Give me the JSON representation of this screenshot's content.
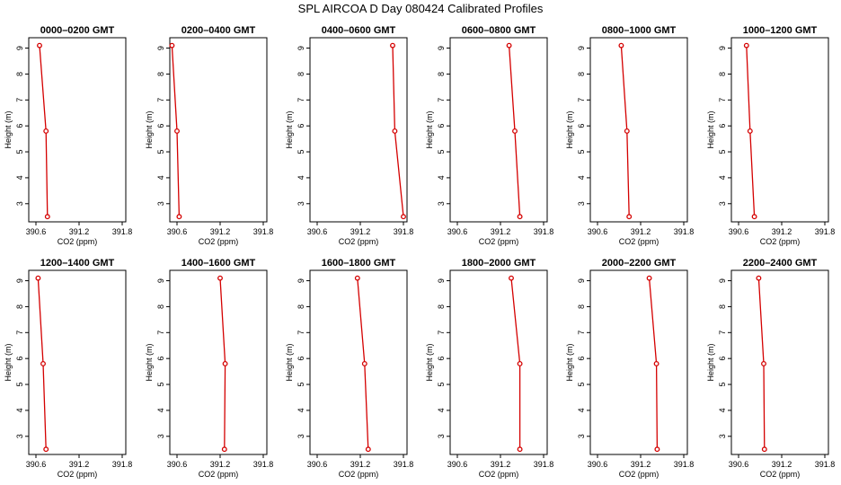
{
  "figure": {
    "title": "SPL AIRCOA D  Day 080424  Calibrated Profiles",
    "line_color": "#d40000",
    "marker_color": "#d40000"
  },
  "chart_data": [
    {
      "type": "line",
      "title": "0000–0200 GMT",
      "xlabel": "CO2 (ppm)",
      "ylabel": "Height (m)",
      "xlim": [
        390.5,
        391.85
      ],
      "ylim": [
        2.3,
        9.4
      ],
      "xticks": [
        "390.6",
        "391.2",
        "391.8"
      ],
      "yticks": [
        "3",
        "4",
        "5",
        "6",
        "7",
        "8",
        "9"
      ],
      "series": [
        {
          "x": [
            390.65,
            390.74,
            390.76
          ],
          "y": [
            9.1,
            5.8,
            2.5
          ]
        }
      ]
    },
    {
      "type": "line",
      "title": "0200–0400 GMT",
      "xlabel": "CO2 (ppm)",
      "ylabel": "Height (m)",
      "xlim": [
        390.5,
        391.85
      ],
      "ylim": [
        2.3,
        9.4
      ],
      "xticks": [
        "390.6",
        "391.2",
        "391.8"
      ],
      "yticks": [
        "3",
        "4",
        "5",
        "6",
        "7",
        "8",
        "9"
      ],
      "series": [
        {
          "x": [
            390.53,
            390.6,
            390.63
          ],
          "y": [
            9.1,
            5.8,
            2.5
          ]
        }
      ]
    },
    {
      "type": "line",
      "title": "0400–0600 GMT",
      "xlabel": "CO2 (ppm)",
      "ylabel": "Height (m)",
      "xlim": [
        390.5,
        391.85
      ],
      "ylim": [
        2.3,
        9.4
      ],
      "xticks": [
        "390.6",
        "391.2",
        "391.8"
      ],
      "yticks": [
        "3",
        "4",
        "5",
        "6",
        "7",
        "8",
        "9"
      ],
      "series": [
        {
          "x": [
            391.65,
            391.68,
            391.8
          ],
          "y": [
            9.1,
            5.8,
            2.5
          ]
        }
      ]
    },
    {
      "type": "line",
      "title": "0600–0800 GMT",
      "xlabel": "CO2 (ppm)",
      "ylabel": "Height (m)",
      "xlim": [
        390.5,
        391.85
      ],
      "ylim": [
        2.3,
        9.4
      ],
      "xticks": [
        "390.6",
        "391.2",
        "391.8"
      ],
      "yticks": [
        "3",
        "4",
        "5",
        "6",
        "7",
        "8",
        "9"
      ],
      "series": [
        {
          "x": [
            391.32,
            391.4,
            391.47
          ],
          "y": [
            9.1,
            5.8,
            2.5
          ]
        }
      ]
    },
    {
      "type": "line",
      "title": "0800–1000 GMT",
      "xlabel": "CO2 (ppm)",
      "ylabel": "Height (m)",
      "xlim": [
        390.5,
        391.85
      ],
      "ylim": [
        2.3,
        9.4
      ],
      "xticks": [
        "390.6",
        "391.2",
        "391.8"
      ],
      "yticks": [
        "3",
        "4",
        "5",
        "6",
        "7",
        "8",
        "9"
      ],
      "series": [
        {
          "x": [
            390.93,
            391.01,
            391.04
          ],
          "y": [
            9.1,
            5.8,
            2.5
          ]
        }
      ]
    },
    {
      "type": "line",
      "title": "1000–1200 GMT",
      "xlabel": "CO2 (ppm)",
      "ylabel": "Height (m)",
      "xlim": [
        390.5,
        391.85
      ],
      "ylim": [
        2.3,
        9.4
      ],
      "xticks": [
        "390.6",
        "391.2",
        "391.8"
      ],
      "yticks": [
        "3",
        "4",
        "5",
        "6",
        "7",
        "8",
        "9"
      ],
      "series": [
        {
          "x": [
            390.71,
            390.76,
            390.82
          ],
          "y": [
            9.1,
            5.8,
            2.5
          ]
        }
      ]
    },
    {
      "type": "line",
      "title": "1200–1400 GMT",
      "xlabel": "CO2 (ppm)",
      "ylabel": "Height (m)",
      "xlim": [
        390.5,
        391.85
      ],
      "ylim": [
        2.3,
        9.4
      ],
      "xticks": [
        "390.6",
        "391.2",
        "391.8"
      ],
      "yticks": [
        "3",
        "4",
        "5",
        "6",
        "7",
        "8",
        "9"
      ],
      "series": [
        {
          "x": [
            390.63,
            390.7,
            390.74
          ],
          "y": [
            9.1,
            5.8,
            2.5
          ]
        }
      ]
    },
    {
      "type": "line",
      "title": "1400–1600 GMT",
      "xlabel": "CO2 (ppm)",
      "ylabel": "Height (m)",
      "xlim": [
        390.5,
        391.85
      ],
      "ylim": [
        2.3,
        9.4
      ],
      "xticks": [
        "390.6",
        "391.2",
        "391.8"
      ],
      "yticks": [
        "3",
        "4",
        "5",
        "6",
        "7",
        "8",
        "9"
      ],
      "series": [
        {
          "x": [
            391.2,
            391.27,
            391.26
          ],
          "y": [
            9.1,
            5.8,
            2.5
          ]
        }
      ]
    },
    {
      "type": "line",
      "title": "1600–1800 GMT",
      "xlabel": "CO2 (ppm)",
      "ylabel": "Height (m)",
      "xlim": [
        390.5,
        391.85
      ],
      "ylim": [
        2.3,
        9.4
      ],
      "xticks": [
        "390.6",
        "391.2",
        "391.8"
      ],
      "yticks": [
        "3",
        "4",
        "5",
        "6",
        "7",
        "8",
        "9"
      ],
      "series": [
        {
          "x": [
            391.16,
            391.26,
            391.31
          ],
          "y": [
            9.1,
            5.8,
            2.5
          ]
        }
      ]
    },
    {
      "type": "line",
      "title": "1800–2000 GMT",
      "xlabel": "CO2 (ppm)",
      "ylabel": "Height (m)",
      "xlim": [
        390.5,
        391.85
      ],
      "ylim": [
        2.3,
        9.4
      ],
      "xticks": [
        "390.6",
        "391.2",
        "391.8"
      ],
      "yticks": [
        "3",
        "4",
        "5",
        "6",
        "7",
        "8",
        "9"
      ],
      "series": [
        {
          "x": [
            391.35,
            391.47,
            391.47
          ],
          "y": [
            9.1,
            5.8,
            2.5
          ]
        }
      ]
    },
    {
      "type": "line",
      "title": "2000–2200 GMT",
      "xlabel": "CO2 (ppm)",
      "ylabel": "Height (m)",
      "xlim": [
        390.5,
        391.85
      ],
      "ylim": [
        2.3,
        9.4
      ],
      "xticks": [
        "390.6",
        "391.2",
        "391.8"
      ],
      "yticks": [
        "3",
        "4",
        "5",
        "6",
        "7",
        "8",
        "9"
      ],
      "series": [
        {
          "x": [
            391.32,
            391.42,
            391.43
          ],
          "y": [
            9.1,
            5.8,
            2.5
          ]
        }
      ]
    },
    {
      "type": "line",
      "title": "2200–2400 GMT",
      "xlabel": "CO2 (ppm)",
      "ylabel": "Height (m)",
      "xlim": [
        390.5,
        391.85
      ],
      "ylim": [
        2.3,
        9.4
      ],
      "xticks": [
        "390.6",
        "391.2",
        "391.8"
      ],
      "yticks": [
        "3",
        "4",
        "5",
        "6",
        "7",
        "8",
        "9"
      ],
      "series": [
        {
          "x": [
            390.88,
            390.95,
            390.96
          ],
          "y": [
            9.1,
            5.8,
            2.5
          ]
        }
      ]
    }
  ]
}
